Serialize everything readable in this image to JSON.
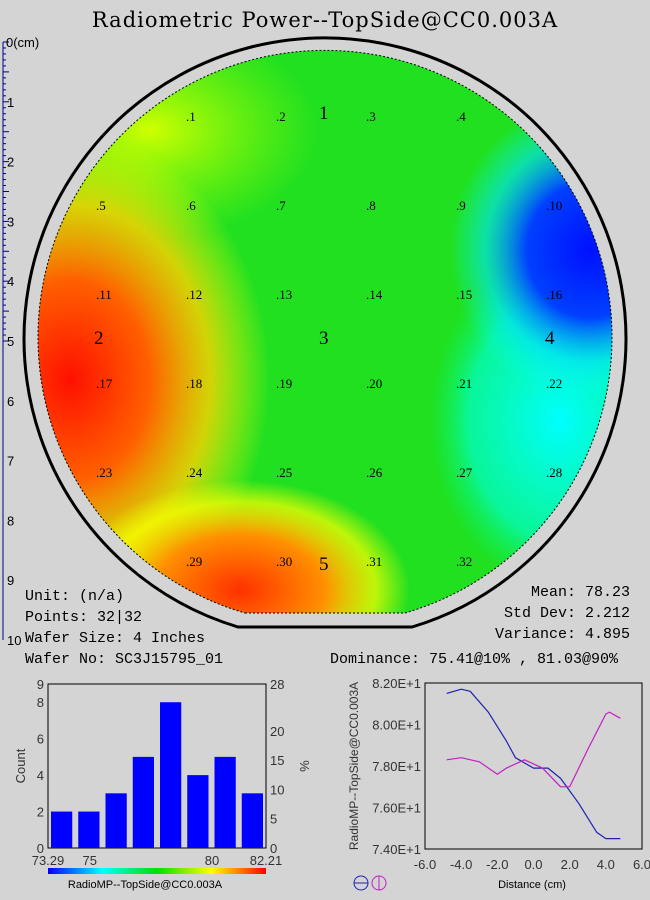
{
  "title": "Radiometric Power--TopSide@CC0.003A",
  "ruler": {
    "unit_label": "0(cm)",
    "ticks": [
      "1",
      "2",
      "3",
      "4",
      "5",
      "6",
      "7",
      "8",
      "9",
      "10"
    ]
  },
  "wafer": {
    "points": [
      ".1",
      ".2",
      ".3",
      ".4",
      ".5",
      ".6",
      ".7",
      ".8",
      ".9",
      ".10",
      ".11",
      ".12",
      ".13",
      ".14",
      ".15",
      ".16",
      ".17",
      ".18",
      ".19",
      ".20",
      ".21",
      ".22",
      ".23",
      ".24",
      ".25",
      ".26",
      ".27",
      ".28",
      ".29",
      ".30",
      ".31",
      ".32"
    ],
    "sites": [
      "1",
      "2",
      "3",
      "4",
      "5"
    ]
  },
  "info": {
    "unit": "Unit: (n/a)",
    "points": "Points: 32|32",
    "wafer_size": "Wafer Size: 4 Inches",
    "wafer_no": "Wafer No: SC3J15795_01"
  },
  "stats": {
    "mean": "Mean: 78.23",
    "std_dev": "Std Dev: 2.212",
    "variance": "Variance: 4.895",
    "dominance": "Dominance: 75.41@10% , 81.03@90%"
  },
  "chart_data": [
    {
      "type": "bar",
      "title": "",
      "xlabel": "RadioMP--TopSide@CC0.003A",
      "ylabel": "Count",
      "y2label": "%",
      "values": [
        2,
        2,
        3,
        5,
        8,
        4,
        5,
        3
      ],
      "xlim": [
        73.29,
        82.21
      ],
      "xticks": [
        "73.29",
        "75",
        "80",
        "82.21"
      ],
      "ylim": [
        0,
        9
      ],
      "yticks": [
        "0",
        "2",
        "4",
        "6",
        "8"
      ],
      "y2lim": [
        0,
        28
      ],
      "y2ticks": [
        "0",
        "5",
        "10",
        "15",
        "20",
        "28"
      ],
      "bar_color": "#0000ff"
    },
    {
      "type": "line",
      "xlabel": "Distance (cm)",
      "ylabel": "RadioMP--TopSide@CC0.003A",
      "xlim": [
        -6,
        6
      ],
      "ylim": [
        74,
        82
      ],
      "xticks": [
        "-6.0",
        "-4.0",
        "-2.0",
        "0.0",
        "2.0",
        "4.0",
        "6.0"
      ],
      "yticks": [
        "7.40E+1",
        "7.60E+1",
        "7.80E+1",
        "8.00E+1",
        "8.20E+1"
      ],
      "series": [
        {
          "name": "horizontal",
          "color": "#2020b0",
          "x": [
            -4.8,
            -4,
            -3.5,
            -2.5,
            -1.5,
            -1,
            0,
            0.8,
            1.5,
            2.5,
            3.5,
            4,
            4.8
          ],
          "y": [
            81.5,
            81.7,
            81.6,
            80.6,
            79.2,
            78.4,
            77.9,
            77.9,
            77.4,
            76.2,
            74.8,
            74.5,
            74.5
          ]
        },
        {
          "name": "vertical",
          "color": "#c020c0",
          "x": [
            -4.8,
            -4,
            -3,
            -2,
            -1.5,
            -0.5,
            0.5,
            1.5,
            2,
            3,
            4,
            4.2,
            4.8
          ],
          "y": [
            78.3,
            78.4,
            78.2,
            77.6,
            77.9,
            78.3,
            77.9,
            77.0,
            77.0,
            78.8,
            80.5,
            80.6,
            80.3
          ]
        }
      ]
    }
  ]
}
